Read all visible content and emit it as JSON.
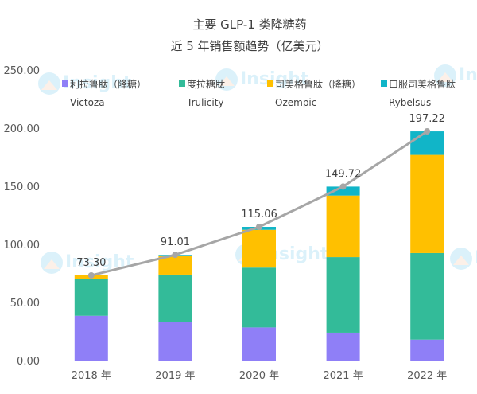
{
  "chart_data": {
    "type": "bar",
    "stacked": true,
    "title": [
      "主要 GLP-1 类降糖药",
      "近 5 年销售额趋势（亿美元）"
    ],
    "categories": [
      "2018 年",
      "2019 年",
      "2020 年",
      "2021 年",
      "2022 年"
    ],
    "ylim": [
      0,
      250
    ],
    "yticks": [
      "0.00",
      "50.00",
      "100.00",
      "150.00",
      "200.00",
      "250.00"
    ],
    "grid": false,
    "legend_position": "top",
    "series": [
      {
        "name": "利拉鲁肽（降糖）",
        "sub": "Victoza",
        "color": "#8f7ff7",
        "values": [
          38.5,
          33.5,
          28.5,
          24.0,
          18.0
        ]
      },
      {
        "name": "度拉糖肽",
        "sub": "Trulicity",
        "color": "#33bb99",
        "values": [
          32.0,
          40.5,
          51.5,
          65.0,
          74.5
        ]
      },
      {
        "name": "司美格鲁肽（降糖）",
        "sub": "Ozempic",
        "color": "#ffc000",
        "values": [
          2.8,
          16.5,
          32.5,
          53.0,
          84.5
        ]
      },
      {
        "name": "口服司美格鲁肽",
        "sub": "Rybelsus",
        "color": "#11b5c8",
        "values": [
          0.0,
          0.5,
          2.56,
          7.72,
          20.22
        ]
      }
    ],
    "totals": {
      "name": "total",
      "color": "#a6a6a6",
      "values": [
        73.3,
        91.01,
        115.06,
        149.72,
        197.22
      ],
      "labels": [
        "73.30",
        "91.01",
        "115.06",
        "149.72",
        "197.22"
      ]
    }
  },
  "watermark": "Insight"
}
